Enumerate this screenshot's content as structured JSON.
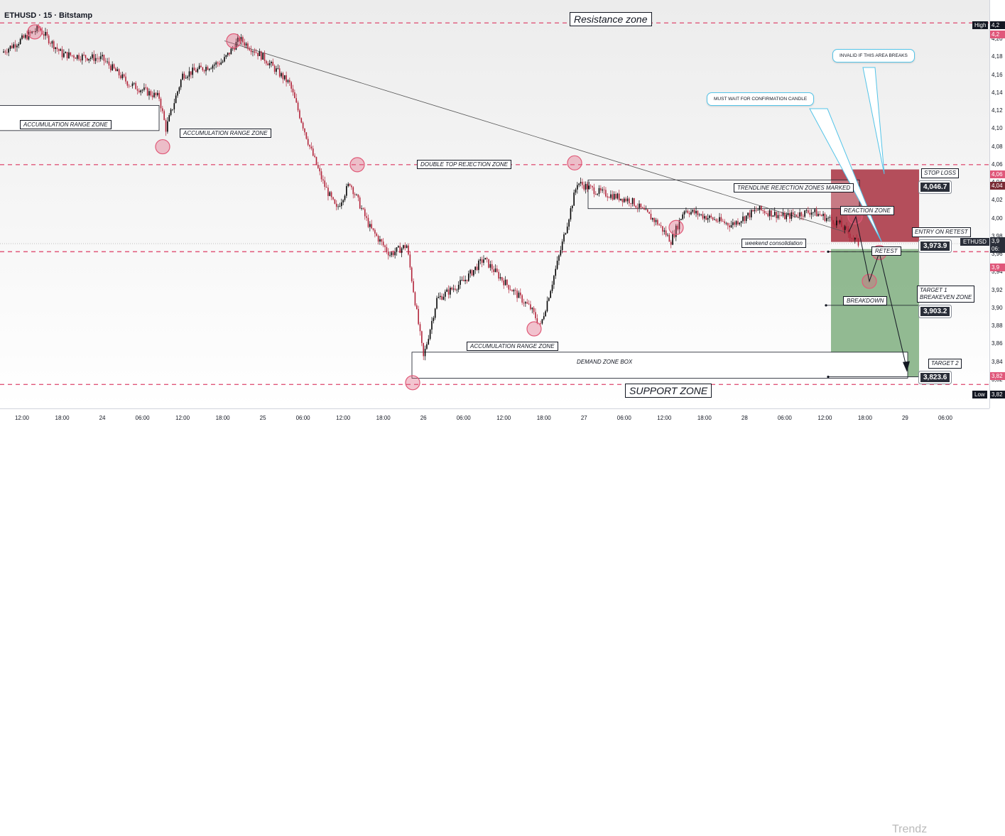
{
  "header": {
    "symbol_title": "ETHUSD · 15 · Bitstamp",
    "currency_button": "US"
  },
  "labels": {
    "resistance_zone": "Resistance zone",
    "support_zone": "SUPPORT ZONE",
    "accumulation_1": "ACCUMULATION RANGE ZONE",
    "accumulation_2": "ACCUMULATION RANGE ZONE",
    "accumulation_3": "ACCUMULATION RANGE ZONE",
    "double_top": "DOUBLE TOP REJECTION ZONE",
    "trendline_rejection": "TRENDLINE REJECTION ZONES MARKED",
    "weekend_consolidation": "weekend consolidation",
    "demand_zone_box": "DEMAND ZONE BOX",
    "reaction_zone": "REACTION ZONE",
    "retest": "RETEST",
    "breakdown": "BREAKDOWN"
  },
  "callouts": {
    "invalid": "INVALID IF THIS AREA BREAKS",
    "confirmation": "MUST WAIT FOR CONFIRMATION CANDLE"
  },
  "trade": {
    "stop_loss_label": "STOP LOSS",
    "stop_loss_price": "4,046.7",
    "entry_label": "ENTRY ON RETEST",
    "entry_price": "3,973.9",
    "target1_label_line1": "TARGET 1",
    "target1_label_line2": "BREAKEVEN ZONE",
    "target1_price": "3,903.2",
    "target2_label": "TARGET 2",
    "target2_price": "3,823.6"
  },
  "price_axis": {
    "ticks": [
      "4,20",
      "4,18",
      "4,16",
      "4,14",
      "4,12",
      "4,10",
      "4,08",
      "4,06",
      "4,04",
      "4,02",
      "4,00",
      "3,98",
      "3,96",
      "3,94",
      "3,92",
      "3,90",
      "3,88",
      "3,86",
      "3,84",
      "3,82"
    ],
    "high_tag_label": "High",
    "high_tag_value": "4,2",
    "low_tag_label": "Low",
    "low_tag_value": "3,82",
    "current_tag_symbol": "ETHUSD",
    "current_tag_value": "3,9",
    "current_tag_countdown": "06:",
    "stop_tag_value": "4,04",
    "pink_tag_value": "3,9",
    "support_tag_value": "3,82",
    "resistance_tag_value": "4,2",
    "dbl_top_tag_value": "4,06"
  },
  "time_axis": {
    "ticks": [
      "12:00",
      "18:00",
      "24",
      "06:00",
      "12:00",
      "18:00",
      "25",
      "06:00",
      "12:00",
      "18:00",
      "26",
      "06:00",
      "12:00",
      "18:00",
      "27",
      "06:00",
      "12:00",
      "18:00",
      "28",
      "06:00",
      "12:00",
      "18:00",
      "29",
      "06:00"
    ]
  },
  "watermark": "Trendz",
  "colors": {
    "bull_candle": "#000000",
    "bear_candle": "#b2243a",
    "zone_dashed": "#e0577a",
    "stop_zone": "#a8303f",
    "target_zone": "#7fae7f",
    "callout_border": "#54c4e8",
    "marker_circle": "#e05a78"
  },
  "chart_data": {
    "type": "candlestick",
    "symbol": "ETHUSD",
    "interval": "15",
    "exchange": "Bitstamp",
    "ylim": [
      3800,
      4220
    ],
    "price_path": [
      {
        "t": "23 09:00",
        "p": 4185
      },
      {
        "t": "23 14:30",
        "p": 4212
      },
      {
        "t": "23 18:00",
        "p": 4183
      },
      {
        "t": "24 00:00",
        "p": 4178
      },
      {
        "t": "24 04:00",
        "p": 4150
      },
      {
        "t": "24 08:30",
        "p": 4135
      },
      {
        "t": "24 09:30",
        "p": 4100
      },
      {
        "t": "24 12:00",
        "p": 4160
      },
      {
        "t": "24 18:00",
        "p": 4175
      },
      {
        "t": "24 20:30",
        "p": 4200
      },
      {
        "t": "25 00:00",
        "p": 4180
      },
      {
        "t": "25 04:00",
        "p": 4150
      },
      {
        "t": "25 07:00",
        "p": 4080
      },
      {
        "t": "25 09:00",
        "p": 4040
      },
      {
        "t": "25 11:00",
        "p": 4010
      },
      {
        "t": "25 13:00",
        "p": 4040
      },
      {
        "t": "25 16:00",
        "p": 3990
      },
      {
        "t": "25 19:00",
        "p": 3960
      },
      {
        "t": "25 21:30",
        "p": 3970
      },
      {
        "t": "26 00:00",
        "p": 3845
      },
      {
        "t": "26 02:00",
        "p": 3910
      },
      {
        "t": "26 06:00",
        "p": 3930
      },
      {
        "t": "26 09:00",
        "p": 3955
      },
      {
        "t": "26 12:00",
        "p": 3930
      },
      {
        "t": "26 16:00",
        "p": 3900
      },
      {
        "t": "26 17:30",
        "p": 3880
      },
      {
        "t": "26 20:00",
        "p": 3950
      },
      {
        "t": "26 23:00",
        "p": 4040
      },
      {
        "t": "27 02:00",
        "p": 4030
      },
      {
        "t": "27 07:00",
        "p": 4020
      },
      {
        "t": "27 11:00",
        "p": 3995
      },
      {
        "t": "27 13:00",
        "p": 3975
      },
      {
        "t": "27 15:00",
        "p": 4010
      },
      {
        "t": "27 19:00",
        "p": 4000
      },
      {
        "t": "27 22:00",
        "p": 3993
      },
      {
        "t": "28 02:00",
        "p": 4010
      },
      {
        "t": "28 06:00",
        "p": 4002
      },
      {
        "t": "28 10:00",
        "p": 4008
      },
      {
        "t": "28 14:00",
        "p": 3995
      },
      {
        "t": "28 17:00",
        "p": 3972
      }
    ],
    "levels": {
      "resistance": 4218,
      "double_top": 4060,
      "stop_loss": 4046.7,
      "entry": 3973.9,
      "target_1": 3903.2,
      "target_2": 3823.6,
      "support": 3815
    }
  }
}
